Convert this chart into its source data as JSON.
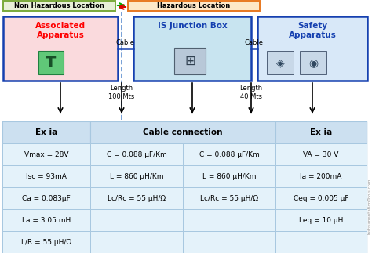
{
  "non_haz_label": "Non Hazardous Location",
  "haz_label": "Hazardous Location",
  "box1_title": "Associated\nApparatus",
  "box2_title": "IS Junction Box",
  "box3_title": "Safety\nApparatus",
  "cable_label_left": "Cable",
  "cable_label_right": "Cable",
  "length1": "Length\n100 Mts",
  "length2": "Length\n40 Mts",
  "col_headers": [
    "Ex ia",
    "Cable connection",
    "Ex ia"
  ],
  "table_rows": [
    [
      "Vmax = 28V",
      "C = 0.088 μF/Km",
      "C = 0.088 μF/Km",
      "VA = 30 V"
    ],
    [
      "Isc = 93mA",
      "L = 860 μH/Km",
      "L = 860 μH/Km",
      "Ia = 200mA"
    ],
    [
      "Ca = 0.083μF",
      "Lc/Rc = 55 μH/Ω",
      "Lc/Rc = 55 μH/Ω",
      "Ceq = 0.005 μF"
    ],
    [
      "La = 3.05 mH",
      "",
      "",
      "Leq = 10 μH"
    ],
    [
      "L/R = 55 μH/Ω",
      "",
      "",
      ""
    ]
  ],
  "non_haz_bg": "#e8f0d8",
  "non_haz_border": "#7aaa3a",
  "haz_bg": "#fde8c8",
  "haz_border": "#e87820",
  "box1_bg": "#fadadd",
  "box1_border": "#1540b0",
  "box2_bg": "#c8e4f0",
  "box2_border": "#1540b0",
  "box3_bg": "#d8e8f8",
  "box3_border": "#1540b0",
  "conn_line_color": "#1540b0",
  "divider_color": "#6090d0",
  "table_header_bg": "#cce0f0",
  "table_row_bg": "#e4f2fa",
  "table_alt_bg": "#d8ecf6",
  "table_border": "#a8c8e0",
  "arrow_green": "#00aa00",
  "arrow_red": "#dd0000",
  "watermark": "InstrumentationTools.com",
  "bg_color": "#ffffff"
}
